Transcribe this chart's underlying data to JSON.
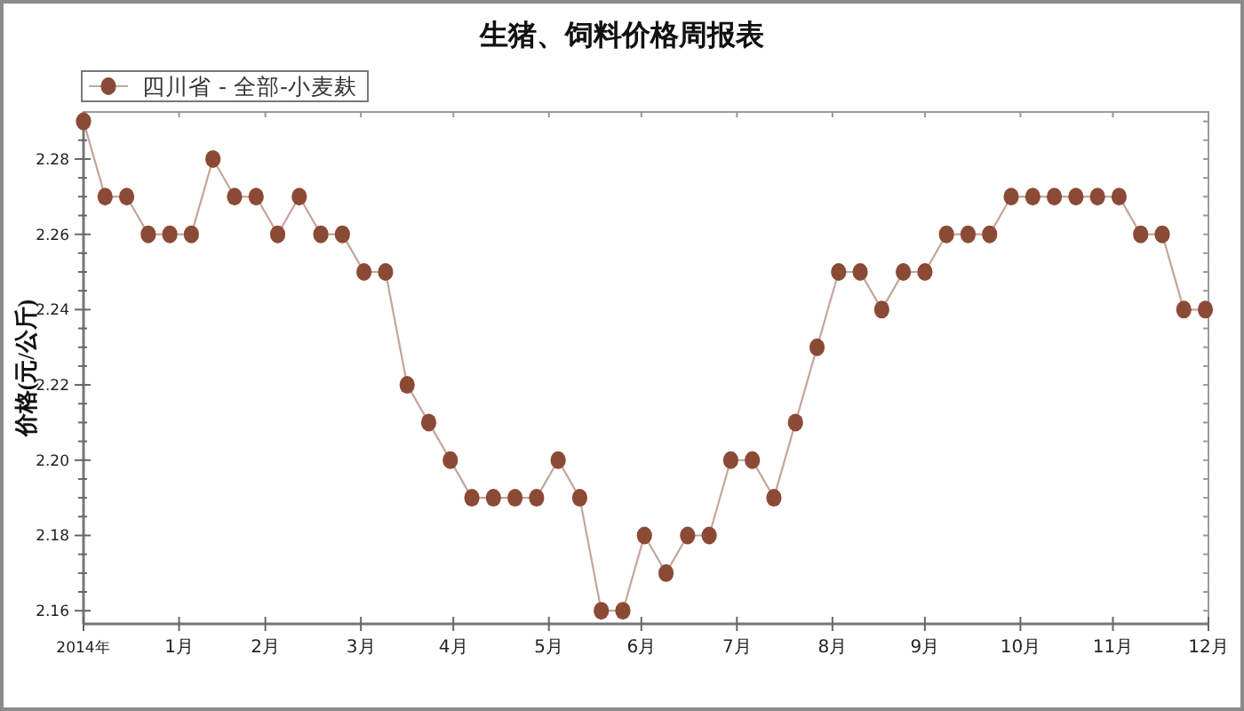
{
  "chart_data": {
    "type": "line",
    "title": "生猪、饲料价格周报表",
    "ylabel": "价格(元/公斤)",
    "x": [
      "2014-01-01",
      "2014-01-08",
      "2014-01-15",
      "2014-01-22",
      "2014-01-29",
      "2014-02-05",
      "2014-02-12",
      "2014-02-19",
      "2014-02-26",
      "2014-03-05",
      "2014-03-12",
      "2014-03-19",
      "2014-03-26",
      "2014-04-02",
      "2014-04-09",
      "2014-04-16",
      "2014-04-23",
      "2014-04-30",
      "2014-05-07",
      "2014-05-14",
      "2014-05-21",
      "2014-05-28",
      "2014-06-04",
      "2014-06-11",
      "2014-06-18",
      "2014-06-25",
      "2014-07-02",
      "2014-07-09",
      "2014-07-16",
      "2014-07-23",
      "2014-07-30",
      "2014-08-06",
      "2014-08-13",
      "2014-08-20",
      "2014-08-27",
      "2014-09-03",
      "2014-09-10",
      "2014-09-17",
      "2014-09-24",
      "2014-10-01",
      "2014-10-08",
      "2014-10-15",
      "2014-10-22",
      "2014-10-29",
      "2014-11-05",
      "2014-11-12",
      "2014-11-19",
      "2014-11-26",
      "2014-12-03",
      "2014-12-10",
      "2014-12-17",
      "2014-12-24",
      "2014-12-31"
    ],
    "series": [
      {
        "name": "四川省 - 全部-小麦麸",
        "color": "#8b4a36",
        "values": [
          2.29,
          2.27,
          2.27,
          2.26,
          2.26,
          2.26,
          2.28,
          2.27,
          2.27,
          2.26,
          2.27,
          2.26,
          2.26,
          2.25,
          2.25,
          2.22,
          2.21,
          2.2,
          2.19,
          2.19,
          2.19,
          2.19,
          2.2,
          2.19,
          2.16,
          2.16,
          2.18,
          2.17,
          2.18,
          2.18,
          2.2,
          2.2,
          2.19,
          2.21,
          2.23,
          2.25,
          2.25,
          2.24,
          2.25,
          2.25,
          2.26,
          2.26,
          2.26,
          2.27,
          2.27,
          2.27,
          2.27,
          2.27,
          2.27,
          2.26,
          2.26,
          2.24,
          2.24
        ]
      }
    ],
    "xlim": [
      "2014-01-01",
      "2015-01-01"
    ],
    "ylim": [
      2.1565,
      2.2925
    ],
    "xticks": [
      {
        "value": "2014-01-01",
        "label": "2014年"
      },
      {
        "value": "2014-02-01",
        "label": "1月"
      },
      {
        "value": "2014-03-01",
        "label": "2月"
      },
      {
        "value": "2014-04-01",
        "label": "3月"
      },
      {
        "value": "2014-05-01",
        "label": "4月"
      },
      {
        "value": "2014-06-01",
        "label": "5月"
      },
      {
        "value": "2014-07-01",
        "label": "6月"
      },
      {
        "value": "2014-08-01",
        "label": "7月"
      },
      {
        "value": "2014-09-01",
        "label": "8月"
      },
      {
        "value": "2014-10-01",
        "label": "9月"
      },
      {
        "value": "2014-11-01",
        "label": "10月"
      },
      {
        "value": "2014-12-01",
        "label": "11月"
      },
      {
        "value": "2015-01-01",
        "label": "12月"
      }
    ],
    "yticks": [
      2.16,
      {
        "value": 2.165,
        "label": null
      },
      {
        "value": 2.17,
        "label": null
      },
      {
        "value": 2.175,
        "label": null
      },
      2.18,
      {
        "value": 2.185,
        "label": null
      },
      {
        "value": 2.19,
        "label": null
      },
      {
        "value": 2.195,
        "label": null
      },
      {
        "value": 2.2,
        "label": "2.20"
      },
      {
        "value": 2.205,
        "label": null
      },
      {
        "value": 2.21,
        "label": null
      },
      {
        "value": 2.215,
        "label": null
      },
      2.22,
      {
        "value": 2.225,
        "label": null
      },
      {
        "value": 2.23,
        "label": null
      },
      {
        "value": 2.235,
        "label": null
      },
      2.24,
      {
        "value": 2.245,
        "label": null
      },
      {
        "value": 2.25,
        "label": null
      },
      {
        "value": 2.255,
        "label": null
      },
      2.26,
      {
        "value": 2.265,
        "label": null
      },
      {
        "value": 2.27,
        "label": null
      },
      {
        "value": 2.275,
        "label": null
      },
      2.28,
      {
        "value": 2.285,
        "label": null
      },
      {
        "value": 2.29,
        "label": null
      }
    ],
    "legend": "top left",
    "marker": "circle",
    "line_style": "solid"
  }
}
